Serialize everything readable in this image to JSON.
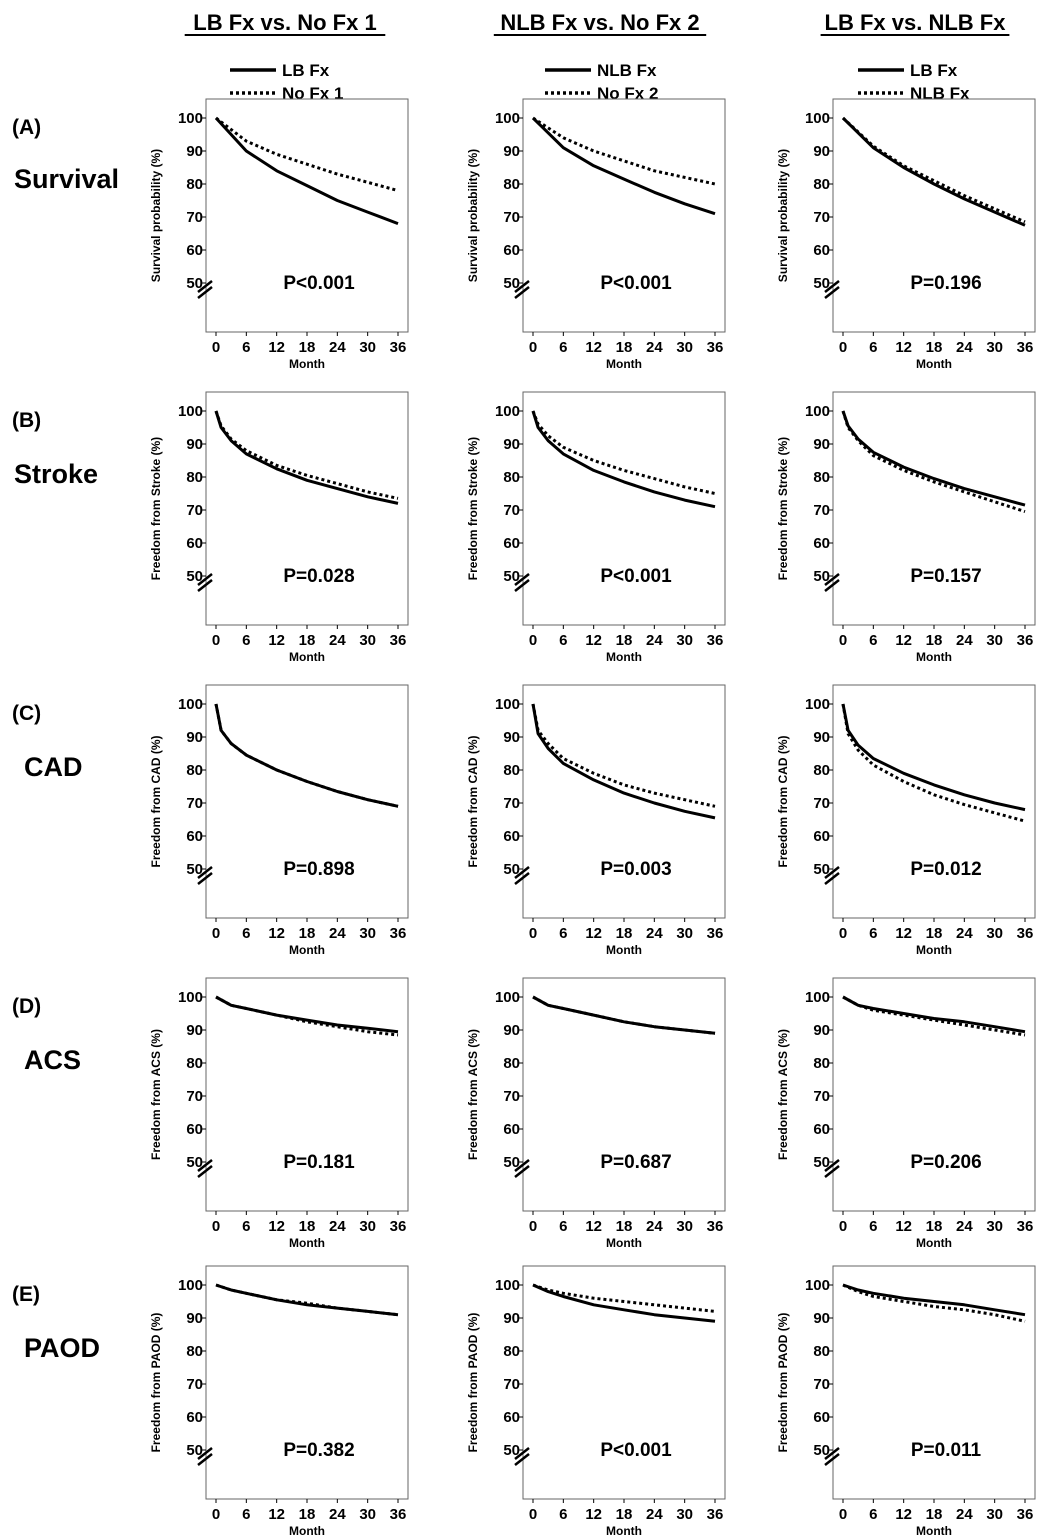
{
  "columns": [
    {
      "title": "LB Fx vs. No Fx 1",
      "legend": [
        "LB Fx",
        "No Fx 1"
      ]
    },
    {
      "title": "NLB Fx vs. No Fx 2",
      "legend": [
        "NLB Fx",
        "No Fx 2"
      ]
    },
    {
      "title": "LB Fx vs. NLB Fx",
      "legend": [
        "LB Fx",
        "NLB Fx"
      ]
    }
  ],
  "rows": [
    {
      "label": "(A)",
      "name": "Survival",
      "ylabel": "Survival probability (%)"
    },
    {
      "label": "(B)",
      "name": "Stroke",
      "ylabel": "Freedom from Stroke (%)"
    },
    {
      "label": "(C)",
      "name": "CAD",
      "ylabel": "Freedom from CAD (%)"
    },
    {
      "label": "(D)",
      "name": "ACS",
      "ylabel": "Freedom from ACS (%)"
    },
    {
      "label": "(E)",
      "name": "PAOD",
      "ylabel": "Freedom from PAOD (%)"
    }
  ],
  "chart_data": [
    {
      "type": "line",
      "row": 0,
      "col": 0,
      "title": "LB Fx vs. No Fx 1",
      "ylabel": "Survival probability (%)",
      "xlabel": "Month",
      "p_value": "P<0.001",
      "x": [
        0,
        6,
        12,
        18,
        24,
        30,
        36
      ],
      "xlim": [
        0,
        36
      ],
      "ylim": [
        50,
        100
      ],
      "yticks": [
        50,
        60,
        70,
        80,
        90,
        100
      ],
      "series": [
        {
          "name": "LB Fx",
          "style": "solid",
          "values": [
            100,
            90,
            84,
            79.5,
            75,
            71.5,
            68
          ]
        },
        {
          "name": "No Fx 1",
          "style": "dotted",
          "values": [
            100,
            93,
            89,
            86,
            83,
            80.5,
            78
          ]
        }
      ]
    },
    {
      "type": "line",
      "row": 0,
      "col": 1,
      "title": "NLB Fx vs. No Fx 2",
      "ylabel": "Survival probability (%)",
      "xlabel": "Month",
      "p_value": "P<0.001",
      "x": [
        0,
        6,
        12,
        18,
        24,
        30,
        36
      ],
      "xlim": [
        0,
        36
      ],
      "ylim": [
        50,
        100
      ],
      "yticks": [
        50,
        60,
        70,
        80,
        90,
        100
      ],
      "series": [
        {
          "name": "NLB Fx",
          "style": "solid",
          "values": [
            100,
            91,
            85.5,
            81.5,
            77.5,
            74,
            71
          ]
        },
        {
          "name": "No Fx 2",
          "style": "dotted",
          "values": [
            100,
            94,
            90,
            87,
            84,
            82,
            80
          ]
        }
      ]
    },
    {
      "type": "line",
      "row": 0,
      "col": 2,
      "title": "LB Fx vs. NLB Fx",
      "ylabel": "Survival probability (%)",
      "xlabel": "Month",
      "p_value": "P=0.196",
      "x": [
        0,
        6,
        12,
        18,
        24,
        30,
        36
      ],
      "xlim": [
        0,
        36
      ],
      "ylim": [
        50,
        100
      ],
      "yticks": [
        50,
        60,
        70,
        80,
        90,
        100
      ],
      "series": [
        {
          "name": "LB Fx",
          "style": "solid",
          "values": [
            100,
            91,
            85,
            80,
            75.5,
            71.5,
            67.5
          ]
        },
        {
          "name": "NLB Fx",
          "style": "dotted",
          "values": [
            100,
            91.5,
            85.5,
            81,
            76.5,
            72.5,
            68.5
          ]
        }
      ]
    },
    {
      "type": "line",
      "row": 1,
      "col": 0,
      "title": "LB Fx vs. No Fx 1",
      "ylabel": "Freedom from Stroke (%)",
      "xlabel": "Month",
      "p_value": "P=0.028",
      "x": [
        0,
        1,
        3,
        6,
        12,
        18,
        24,
        30,
        36
      ],
      "xlim": [
        0,
        36
      ],
      "ylim": [
        50,
        100
      ],
      "yticks": [
        50,
        60,
        70,
        80,
        90,
        100
      ],
      "series": [
        {
          "name": "LB Fx",
          "style": "solid",
          "values": [
            100,
            95,
            91,
            87,
            82.5,
            79,
            76.5,
            74,
            72
          ]
        },
        {
          "name": "No Fx 1",
          "style": "dotted",
          "values": [
            100,
            95.5,
            91.5,
            88,
            83.5,
            80.5,
            78,
            75.5,
            73.5
          ]
        }
      ]
    },
    {
      "type": "line",
      "row": 1,
      "col": 1,
      "title": "NLB Fx vs. No Fx 2",
      "ylabel": "Freedom from Stroke (%)",
      "xlabel": "Month",
      "p_value": "P<0.001",
      "x": [
        0,
        1,
        3,
        6,
        12,
        18,
        24,
        30,
        36
      ],
      "xlim": [
        0,
        36
      ],
      "ylim": [
        50,
        100
      ],
      "yticks": [
        50,
        60,
        70,
        80,
        90,
        100
      ],
      "series": [
        {
          "name": "NLB Fx",
          "style": "solid",
          "values": [
            100,
            95,
            91,
            87,
            82,
            78.5,
            75.5,
            73,
            71
          ]
        },
        {
          "name": "No Fx 2",
          "style": "dotted",
          "values": [
            100,
            96,
            92.5,
            89,
            85,
            82,
            79.5,
            77,
            75
          ]
        }
      ]
    },
    {
      "type": "line",
      "row": 1,
      "col": 2,
      "title": "LB Fx vs. NLB Fx",
      "ylabel": "Freedom from Stroke (%)",
      "xlabel": "Month",
      "p_value": "P=0.157",
      "x": [
        0,
        1,
        3,
        6,
        12,
        18,
        24,
        30,
        36
      ],
      "xlim": [
        0,
        36
      ],
      "ylim": [
        50,
        100
      ],
      "yticks": [
        50,
        60,
        70,
        80,
        90,
        100
      ],
      "series": [
        {
          "name": "LB Fx",
          "style": "solid",
          "values": [
            100,
            95.5,
            91.5,
            87.5,
            83,
            79.5,
            76.5,
            74,
            71.5
          ]
        },
        {
          "name": "NLB Fx",
          "style": "dotted",
          "values": [
            100,
            95,
            91,
            86.5,
            82,
            78.5,
            75.5,
            72.5,
            69.5
          ]
        }
      ]
    },
    {
      "type": "line",
      "row": 2,
      "col": 0,
      "title": "LB Fx vs. No Fx 1",
      "ylabel": "Freedom from CAD (%)",
      "xlabel": "Month",
      "p_value": "P=0.898",
      "x": [
        0,
        1,
        3,
        6,
        12,
        18,
        24,
        30,
        36
      ],
      "xlim": [
        0,
        36
      ],
      "ylim": [
        50,
        100
      ],
      "yticks": [
        50,
        60,
        70,
        80,
        90,
        100
      ],
      "series": [
        {
          "name": "LB Fx",
          "style": "solid",
          "values": [
            100,
            92,
            88,
            84.5,
            80,
            76.5,
            73.5,
            71,
            69
          ]
        },
        {
          "name": "No Fx 1",
          "style": "dotted",
          "values": [
            100,
            92,
            88,
            84.5,
            80,
            76.5,
            73.5,
            71,
            69
          ]
        }
      ]
    },
    {
      "type": "line",
      "row": 2,
      "col": 1,
      "title": "NLB Fx vs. No Fx 2",
      "ylabel": "Freedom from CAD (%)",
      "xlabel": "Month",
      "p_value": "P=0.003",
      "x": [
        0,
        1,
        3,
        6,
        12,
        18,
        24,
        30,
        36
      ],
      "xlim": [
        0,
        36
      ],
      "ylim": [
        50,
        100
      ],
      "yticks": [
        50,
        60,
        70,
        80,
        90,
        100
      ],
      "series": [
        {
          "name": "NLB Fx",
          "style": "solid",
          "values": [
            100,
            91,
            86.5,
            82,
            77,
            73,
            70,
            67.5,
            65.5
          ]
        },
        {
          "name": "No Fx 2",
          "style": "dotted",
          "values": [
            100,
            92,
            88,
            83.5,
            79,
            75.5,
            73,
            71,
            69
          ]
        }
      ]
    },
    {
      "type": "line",
      "row": 2,
      "col": 2,
      "title": "LB Fx vs. NLB Fx",
      "ylabel": "Freedom from CAD (%)",
      "xlabel": "Month",
      "p_value": "P=0.012",
      "x": [
        0,
        1,
        3,
        6,
        12,
        18,
        24,
        30,
        36
      ],
      "xlim": [
        0,
        36
      ],
      "ylim": [
        50,
        100
      ],
      "yticks": [
        50,
        60,
        70,
        80,
        90,
        100
      ],
      "series": [
        {
          "name": "LB Fx",
          "style": "solid",
          "values": [
            100,
            92,
            87.5,
            83.5,
            79,
            75.5,
            72.5,
            70,
            68
          ]
        },
        {
          "name": "NLB Fx",
          "style": "dotted",
          "values": [
            100,
            91,
            86,
            81.5,
            76.5,
            72.5,
            69.5,
            67,
            64.5
          ]
        }
      ]
    },
    {
      "type": "line",
      "row": 3,
      "col": 0,
      "title": "LB Fx vs. No Fx 1",
      "ylabel": "Freedom from ACS (%)",
      "xlabel": "Month",
      "p_value": "P=0.181",
      "x": [
        0,
        3,
        6,
        12,
        18,
        24,
        30,
        36
      ],
      "xlim": [
        0,
        36
      ],
      "ylim": [
        50,
        100
      ],
      "yticks": [
        50,
        60,
        70,
        80,
        90,
        100
      ],
      "series": [
        {
          "name": "LB Fx",
          "style": "solid",
          "values": [
            100,
            97.5,
            96.5,
            94.5,
            93,
            91.5,
            90.5,
            89.5
          ]
        },
        {
          "name": "No Fx 1",
          "style": "dotted",
          "values": [
            100,
            97.5,
            96.5,
            94.5,
            92.5,
            91,
            89.5,
            88.5
          ]
        }
      ]
    },
    {
      "type": "line",
      "row": 3,
      "col": 1,
      "title": "NLB Fx vs. No Fx 2",
      "ylabel": "Freedom from ACS (%)",
      "xlabel": "Month",
      "p_value": "P=0.687",
      "x": [
        0,
        3,
        6,
        12,
        18,
        24,
        30,
        36
      ],
      "xlim": [
        0,
        36
      ],
      "ylim": [
        50,
        100
      ],
      "yticks": [
        50,
        60,
        70,
        80,
        90,
        100
      ],
      "series": [
        {
          "name": "NLB Fx",
          "style": "solid",
          "values": [
            100,
            97.5,
            96.5,
            94.5,
            92.5,
            91,
            90,
            89
          ]
        },
        {
          "name": "No Fx 2",
          "style": "dotted",
          "values": [
            100,
            97.5,
            96.5,
            94.5,
            92.5,
            91,
            90,
            89
          ]
        }
      ]
    },
    {
      "type": "line",
      "row": 3,
      "col": 2,
      "title": "LB Fx vs. NLB Fx",
      "ylabel": "Freedom from ACS (%)",
      "xlabel": "Month",
      "p_value": "P=0.206",
      "x": [
        0,
        3,
        6,
        12,
        18,
        24,
        30,
        36
      ],
      "xlim": [
        0,
        36
      ],
      "ylim": [
        50,
        100
      ],
      "yticks": [
        50,
        60,
        70,
        80,
        90,
        100
      ],
      "series": [
        {
          "name": "LB Fx",
          "style": "solid",
          "values": [
            100,
            97.5,
            96.5,
            95,
            93.5,
            92.5,
            91,
            89.5
          ]
        },
        {
          "name": "NLB Fx",
          "style": "dotted",
          "values": [
            100,
            97.5,
            96,
            94.5,
            93,
            91.5,
            90,
            88.5
          ]
        }
      ]
    },
    {
      "type": "line",
      "row": 4,
      "col": 0,
      "title": "LB Fx vs. No Fx 1",
      "ylabel": "Freedom from PAOD (%)",
      "xlabel": "Month",
      "p_value": "P=0.382",
      "x": [
        0,
        3,
        6,
        12,
        18,
        24,
        30,
        36
      ],
      "xlim": [
        0,
        36
      ],
      "ylim": [
        50,
        100
      ],
      "yticks": [
        50,
        60,
        70,
        80,
        90,
        100
      ],
      "series": [
        {
          "name": "LB Fx",
          "style": "solid",
          "values": [
            100,
            98.5,
            97.5,
            95.5,
            94,
            93,
            92,
            91
          ]
        },
        {
          "name": "No Fx 1",
          "style": "dotted",
          "values": [
            100,
            98.5,
            97.5,
            95.5,
            94.5,
            93,
            92,
            91
          ]
        }
      ]
    },
    {
      "type": "line",
      "row": 4,
      "col": 1,
      "title": "NLB Fx vs. No Fx 2",
      "ylabel": "Freedom from PAOD (%)",
      "xlabel": "Month",
      "p_value": "P<0.001",
      "x": [
        0,
        3,
        6,
        12,
        18,
        24,
        30,
        36
      ],
      "xlim": [
        0,
        36
      ],
      "ylim": [
        50,
        100
      ],
      "yticks": [
        50,
        60,
        70,
        80,
        90,
        100
      ],
      "series": [
        {
          "name": "NLB Fx",
          "style": "solid",
          "values": [
            100,
            98,
            96.5,
            94,
            92.5,
            91,
            90,
            89
          ]
        },
        {
          "name": "No Fx 2",
          "style": "dotted",
          "values": [
            100,
            98.5,
            97.5,
            96,
            95,
            94,
            93,
            92
          ]
        }
      ]
    },
    {
      "type": "line",
      "row": 4,
      "col": 2,
      "title": "LB Fx vs. NLB Fx",
      "ylabel": "Freedom from PAOD (%)",
      "xlabel": "Month",
      "p_value": "P=0.011",
      "x": [
        0,
        3,
        6,
        12,
        18,
        24,
        30,
        36
      ],
      "xlim": [
        0,
        36
      ],
      "ylim": [
        50,
        100
      ],
      "yticks": [
        50,
        60,
        70,
        80,
        90,
        100
      ],
      "series": [
        {
          "name": "LB Fx",
          "style": "solid",
          "values": [
            100,
            98.5,
            97.5,
            96,
            95,
            94,
            92.5,
            91
          ]
        },
        {
          "name": "NLB Fx",
          "style": "dotted",
          "values": [
            100,
            98,
            96.5,
            95,
            93.5,
            92.5,
            91,
            89
          ]
        }
      ]
    }
  ]
}
